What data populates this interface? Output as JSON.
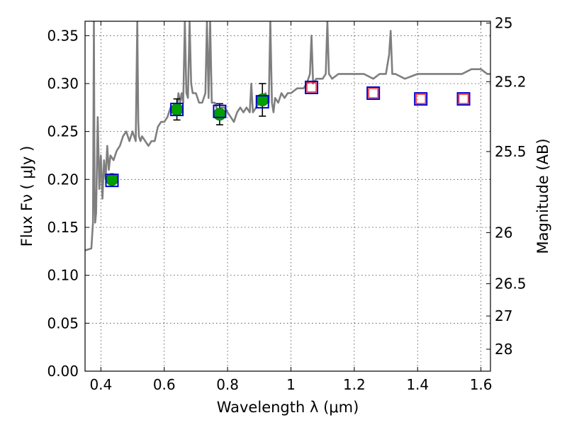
{
  "chart_data": {
    "type": "scatter",
    "xlabel": "Wavelength  λ (μm)",
    "ylabel_left": "Flux  Fν  ( μJy )",
    "ylabel_right": "Magnitude (AB)",
    "xlim": [
      0.35,
      1.63
    ],
    "ylim": [
      0.0,
      0.365
    ],
    "grid": true,
    "x_ticks": [
      0.4,
      0.6,
      0.8,
      1.0,
      1.2,
      1.4,
      1.6
    ],
    "x_tick_labels": [
      "0.4",
      "0.6",
      "0.8",
      "1",
      "1.2",
      "1.4",
      "1.6"
    ],
    "y_ticks": [
      0.0,
      0.05,
      0.1,
      0.15,
      0.2,
      0.25,
      0.3,
      0.35
    ],
    "y_tick_labels": [
      "0.00",
      "0.05",
      "0.10",
      "0.15",
      "0.20",
      "0.25",
      "0.30",
      "0.35"
    ],
    "right_ticks": [
      {
        "mag": 25,
        "label": "25"
      },
      {
        "mag": 25.2,
        "label": "25.2"
      },
      {
        "mag": 25.5,
        "label": "25.5"
      },
      {
        "mag": 26,
        "label": "26"
      },
      {
        "mag": 26.5,
        "label": "26.5"
      },
      {
        "mag": 27,
        "label": "27"
      },
      {
        "mag": 28,
        "label": "28"
      }
    ],
    "series": [
      {
        "kind": "spectrum-line",
        "color": "#7f7f7f",
        "x": [
          0.35,
          0.36,
          0.37,
          0.375,
          0.378,
          0.38,
          0.382,
          0.385,
          0.39,
          0.395,
          0.4,
          0.405,
          0.41,
          0.415,
          0.42,
          0.425,
          0.43,
          0.44,
          0.45,
          0.46,
          0.47,
          0.48,
          0.49,
          0.5,
          0.51,
          0.515,
          0.518,
          0.52,
          0.525,
          0.53,
          0.54,
          0.55,
          0.56,
          0.57,
          0.58,
          0.59,
          0.6,
          0.61,
          0.62,
          0.63,
          0.64,
          0.645,
          0.65,
          0.655,
          0.66,
          0.665,
          0.67,
          0.675,
          0.68,
          0.685,
          0.69,
          0.7,
          0.71,
          0.72,
          0.73,
          0.735,
          0.74,
          0.745,
          0.75,
          0.76,
          0.77,
          0.78,
          0.79,
          0.8,
          0.81,
          0.82,
          0.83,
          0.84,
          0.85,
          0.86,
          0.87,
          0.875,
          0.88,
          0.89,
          0.9,
          0.91,
          0.92,
          0.93,
          0.935,
          0.94,
          0.945,
          0.95,
          0.96,
          0.97,
          0.98,
          0.99,
          1.0,
          1.02,
          1.04,
          1.05,
          1.06,
          1.065,
          1.07,
          1.08,
          1.1,
          1.11,
          1.115,
          1.12,
          1.13,
          1.15,
          1.17,
          1.2,
          1.23,
          1.26,
          1.28,
          1.3,
          1.31,
          1.315,
          1.32,
          1.33,
          1.36,
          1.4,
          1.45,
          1.5,
          1.54,
          1.57,
          1.6,
          1.62,
          1.63
        ],
        "y": [
          0.126,
          0.127,
          0.128,
          0.155,
          0.365,
          0.19,
          0.155,
          0.165,
          0.265,
          0.19,
          0.225,
          0.18,
          0.22,
          0.2,
          0.235,
          0.21,
          0.225,
          0.22,
          0.23,
          0.235,
          0.245,
          0.25,
          0.24,
          0.25,
          0.24,
          0.365,
          0.26,
          0.245,
          0.24,
          0.245,
          0.24,
          0.235,
          0.24,
          0.24,
          0.255,
          0.26,
          0.26,
          0.265,
          0.275,
          0.27,
          0.275,
          0.29,
          0.28,
          0.29,
          0.28,
          0.365,
          0.29,
          0.285,
          0.365,
          0.3,
          0.29,
          0.29,
          0.28,
          0.28,
          0.29,
          0.365,
          0.285,
          0.365,
          0.28,
          0.28,
          0.27,
          0.275,
          0.275,
          0.27,
          0.265,
          0.26,
          0.27,
          0.275,
          0.27,
          0.275,
          0.27,
          0.3,
          0.27,
          0.275,
          0.28,
          0.285,
          0.29,
          0.28,
          0.365,
          0.28,
          0.27,
          0.285,
          0.28,
          0.29,
          0.285,
          0.29,
          0.29,
          0.295,
          0.295,
          0.3,
          0.31,
          0.35,
          0.3,
          0.305,
          0.305,
          0.31,
          0.365,
          0.31,
          0.305,
          0.31,
          0.31,
          0.31,
          0.31,
          0.305,
          0.31,
          0.31,
          0.33,
          0.355,
          0.31,
          0.31,
          0.305,
          0.31,
          0.31,
          0.31,
          0.31,
          0.315,
          0.315,
          0.31,
          0.31
        ]
      },
      {
        "kind": "observed-points",
        "color": "#00a000",
        "x": [
          0.435,
          0.64,
          0.775,
          0.91
        ],
        "y": [
          0.2,
          0.273,
          0.268,
          0.283
        ],
        "yerr": [
          0.0,
          0.011,
          0.011,
          0.017
        ]
      },
      {
        "kind": "model-boxes",
        "color": "#0000cc",
        "x": [
          0.435,
          0.64,
          0.775,
          0.91,
          1.065,
          1.26,
          1.41,
          1.545
        ],
        "y": [
          0.199,
          0.273,
          0.271,
          0.281,
          0.296,
          0.29,
          0.284,
          0.284
        ]
      },
      {
        "kind": "upper-boxes",
        "color": "#ff0000",
        "x": [
          1.065,
          1.26,
          1.41,
          1.545
        ],
        "y": [
          0.296,
          0.29,
          0.284,
          0.284
        ]
      }
    ]
  }
}
